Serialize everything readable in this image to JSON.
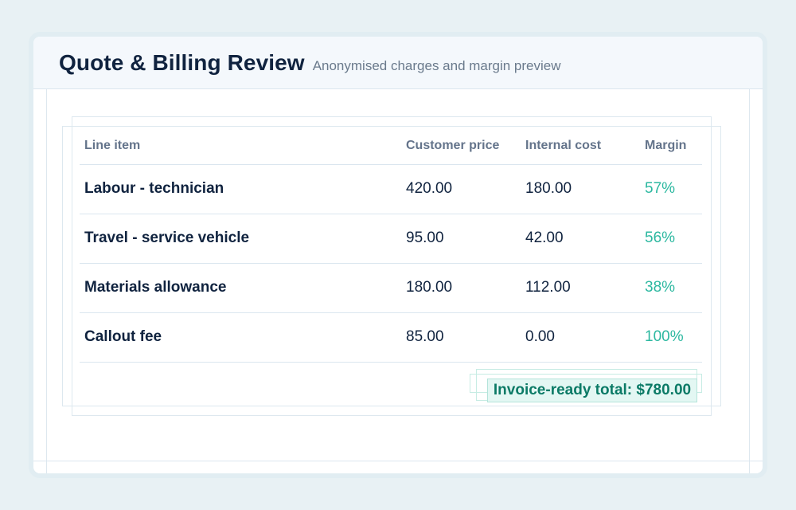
{
  "header": {
    "title": "Quote & Billing Review",
    "subtitle": "Anonymised charges and margin preview"
  },
  "table": {
    "columns": [
      "Line item",
      "Customer price",
      "Internal cost",
      "Margin"
    ],
    "rows": [
      {
        "item": "Labour - technician",
        "price": "420.00",
        "cost": "180.00",
        "margin": "57%"
      },
      {
        "item": "Travel - service vehicle",
        "price": "95.00",
        "cost": "42.00",
        "margin": "56%"
      },
      {
        "item": "Materials allowance",
        "price": "180.00",
        "cost": "112.00",
        "margin": "38%"
      },
      {
        "item": "Callout fee",
        "price": "85.00",
        "cost": "0.00",
        "margin": "100%"
      }
    ]
  },
  "total": {
    "label": "Invoice-ready total: $780.00"
  },
  "colors": {
    "title": "#10233f",
    "margin_accent": "#2cb8a0",
    "total_text": "#0b7a66",
    "total_bg": "#e3f7f3"
  }
}
